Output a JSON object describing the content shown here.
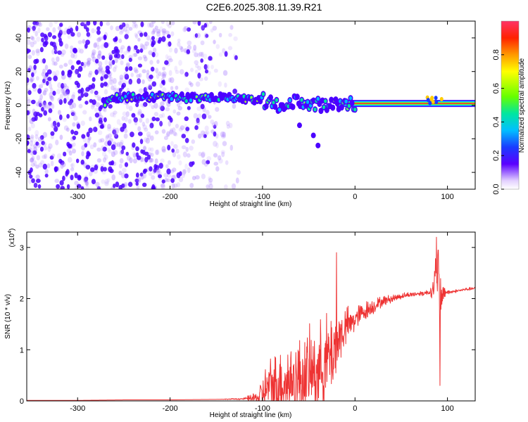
{
  "title": "C2E6.2025.308.11.39.R21",
  "colors": {
    "line": "#ee3333",
    "band_dark": "#4b00ff",
    "scatter": "#6a00ff",
    "axis": "#000000"
  },
  "chart_data": [
    {
      "type": "heatmap",
      "name": "spectrogram",
      "xlabel": "Height of straight line (km)",
      "ylabel": "Frequency (Hz)",
      "xlim": [
        -355,
        130
      ],
      "ylim": [
        -50,
        50
      ],
      "xticks": [
        -300,
        -200,
        -100,
        0,
        100
      ],
      "yticks": [
        -40,
        -20,
        0,
        20,
        40
      ],
      "colorbar": {
        "label": "Normalized spectral amplitude",
        "range": [
          0,
          1
        ],
        "ticks": [
          0.0,
          0.2,
          0.4,
          0.6,
          0.8
        ],
        "tick_labels": [
          "0.0",
          "0.2",
          "0.4",
          "0.6",
          "0.8"
        ]
      },
      "noise_region_x": [
        -355,
        -125
      ],
      "band_center_points": [
        [
          -270,
          4
        ],
        [
          -230,
          5
        ],
        [
          -200,
          5
        ],
        [
          -170,
          4
        ],
        [
          -140,
          5
        ],
        [
          -120,
          4
        ],
        [
          -100,
          3
        ],
        [
          -80,
          0
        ],
        [
          -60,
          2
        ],
        [
          -40,
          0
        ],
        [
          -20,
          1
        ],
        [
          0,
          1
        ],
        [
          50,
          1
        ],
        [
          85,
          2
        ],
        [
          130,
          1
        ]
      ],
      "branch_points": [
        [
          -60,
          -12
        ],
        [
          -45,
          -18
        ],
        [
          -40,
          -24
        ]
      ]
    },
    {
      "type": "line",
      "name": "snr",
      "xlabel": "Height of straight line (km)",
      "ylabel": "SNR (10 * v/v)",
      "multiplier_label": "(x10",
      "multiplier_exp": "4",
      "xlim": [
        -355,
        130
      ],
      "ylim": [
        0,
        3.3
      ],
      "xticks": [
        -300,
        -200,
        -100,
        0,
        100
      ],
      "yticks": [
        0,
        1,
        2,
        3
      ],
      "x": [
        -355,
        -300,
        -250,
        -200,
        -150,
        -120,
        -105,
        -100,
        -95,
        -90,
        -80,
        -70,
        -60,
        -50,
        -40,
        -30,
        -20,
        -15,
        -10,
        -5,
        0,
        10,
        20,
        30,
        40,
        50,
        60,
        70,
        80,
        85,
        88,
        90,
        92,
        94,
        96,
        100,
        110,
        120,
        130
      ],
      "y": [
        0.01,
        0.01,
        0.02,
        0.02,
        0.03,
        0.04,
        0.06,
        0.15,
        0.25,
        0.3,
        0.35,
        0.4,
        0.45,
        0.55,
        0.6,
        0.8,
        1.1,
        1.3,
        1.45,
        1.5,
        1.6,
        1.75,
        1.85,
        1.95,
        2.0,
        2.05,
        2.08,
        2.1,
        2.12,
        2.2,
        2.5,
        2.3,
        1.4,
        2.1,
        2.15,
        2.12,
        2.15,
        2.18,
        2.2
      ],
      "noise_amplitude": [
        0,
        0,
        0,
        0,
        0,
        0.02,
        0.15,
        0.35,
        0.5,
        0.6,
        0.7,
        0.75,
        0.8,
        0.8,
        0.85,
        0.9,
        0.8,
        0.5,
        0.4,
        0.3,
        0.25,
        0.2,
        0.15,
        0.1,
        0.08,
        0.06,
        0.05,
        0.05,
        0.06,
        0.2,
        0.6,
        0.9,
        1.0,
        0.4,
        0.15,
        0.05,
        0.03,
        0.03,
        0.03
      ],
      "spikes": [
        [
          -20,
          2.9
        ],
        [
          88,
          3.2
        ],
        [
          90,
          2.95
        ],
        [
          92,
          0.3
        ]
      ]
    }
  ]
}
